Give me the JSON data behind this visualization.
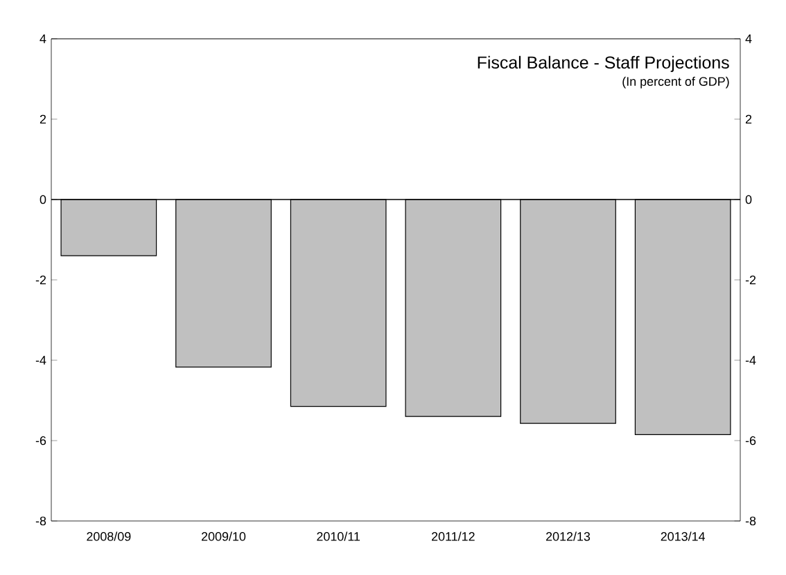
{
  "chart_data": {
    "type": "bar",
    "title": "Fiscal Balance - Staff Projections",
    "subtitle": "(In percent of GDP)",
    "categories": [
      "2008/09",
      "2009/10",
      "2010/11",
      "2011/12",
      "2012/13",
      "2013/14"
    ],
    "values": [
      -1.4,
      -4.17,
      -5.15,
      -5.4,
      -5.57,
      -5.85
    ],
    "color": "#c0c0c0",
    "ylim": [
      -8,
      4
    ],
    "yticks": [
      -8,
      -6,
      -4,
      -2,
      0,
      2,
      4
    ],
    "y2lim": [
      -8,
      4
    ],
    "y2ticks": [
      -8,
      -6,
      -4,
      -2,
      0,
      2,
      4
    ]
  }
}
